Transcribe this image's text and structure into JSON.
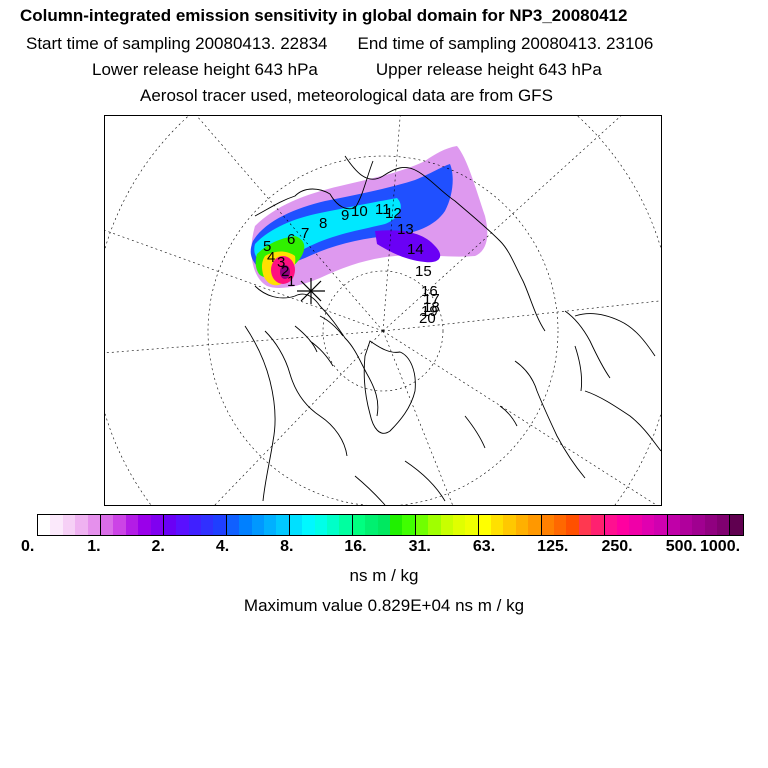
{
  "header": {
    "title": "Column-integrated emission sensitivity in global domain for NP3_20080412",
    "start_time": "Start time of sampling 20080413. 22834",
    "end_time": "End time of sampling 20080413. 23106",
    "lower_release": "Lower release height  643 hPa",
    "upper_release": "Upper release height  643 hPa",
    "tracer_info": "Aerosol tracer used, meteorological data are from GFS"
  },
  "map": {
    "projection": "polar-stereographic-north",
    "trajectory_labels": [
      "1",
      "2",
      "3",
      "4",
      "5",
      "6",
      "7",
      "8",
      "9",
      "10",
      "11",
      "12",
      "13",
      "14",
      "15",
      "16",
      "17",
      "18",
      "19",
      "20"
    ],
    "release_marker": "cross"
  },
  "colorbar": {
    "ticks": [
      "0.",
      "1.",
      "2.",
      "4.",
      "8.",
      "16.",
      "31.",
      "63.",
      "125.",
      "250.",
      "500.",
      "1000."
    ],
    "colors": [
      "#ffffff",
      "#fbe9fb",
      "#f6d0f6",
      "#efb2f1",
      "#e590ec",
      "#da6de8",
      "#cc44e6",
      "#b31ce6",
      "#9a00ea",
      "#8000f0",
      "#6a00f5",
      "#5a10ff",
      "#4020ff",
      "#3030ff",
      "#1f3fff",
      "#1060ff",
      "#0080ff",
      "#0098ff",
      "#00b0ff",
      "#00c8ff",
      "#00e0ff",
      "#00f8ff",
      "#00ffe8",
      "#00ffc8",
      "#00ffa0",
      "#00ff80",
      "#00f070",
      "#00e860",
      "#20f000",
      "#40ff00",
      "#70ff00",
      "#a0ff00",
      "#c8ff00",
      "#e0ff00",
      "#f0ff00",
      "#ffff00",
      "#ffe000",
      "#ffc800",
      "#ffb000",
      "#ff9800",
      "#ff8000",
      "#ff6800",
      "#ff5000",
      "#ff3850",
      "#ff2070",
      "#ff1090",
      "#ff00a0",
      "#f000a8",
      "#e000b0",
      "#d000b0",
      "#c000a8",
      "#b0009c",
      "#a00090",
      "#900080",
      "#800070",
      "#600050"
    ],
    "unit": "ns m / kg"
  },
  "max_value": "Maximum value  0.829E+04 ns m / kg"
}
